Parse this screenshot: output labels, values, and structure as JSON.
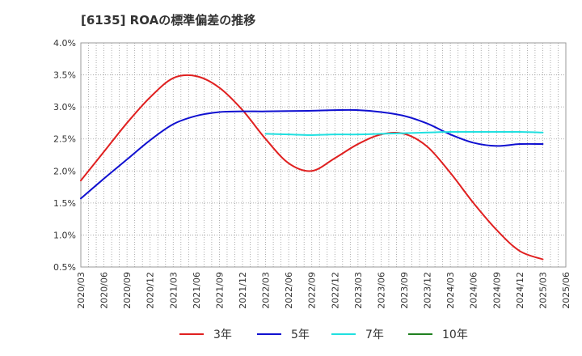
{
  "chart_data": {
    "type": "line",
    "title": "[6135]  ROAの標準偏差の推移",
    "xlabel": "",
    "ylabel": "",
    "ylim": [
      0.5,
      4.0
    ],
    "y_ticks": [
      "4.0%",
      "3.5%",
      "3.0%",
      "2.5%",
      "2.0%",
      "1.5%",
      "1.0%",
      "0.5%"
    ],
    "y_tick_values": [
      4.0,
      3.5,
      3.0,
      2.5,
      2.0,
      1.5,
      1.0,
      0.5
    ],
    "x_ticks": [
      "2020/03",
      "2020/06",
      "2020/09",
      "2020/12",
      "2021/03",
      "2021/06",
      "2021/09",
      "2021/12",
      "2022/03",
      "2022/06",
      "2022/09",
      "2022/12",
      "2023/03",
      "2023/06",
      "2023/09",
      "2023/12",
      "2024/03",
      "2024/06",
      "2024/09",
      "2024/12",
      "2025/03",
      "2025/06"
    ],
    "grid": true,
    "legend_position": "bottom",
    "series": [
      {
        "name": "3年",
        "color": "#e02020",
        "x": [
          "2020/03",
          "2020/06",
          "2020/09",
          "2020/12",
          "2021/03",
          "2021/06",
          "2021/09",
          "2021/12",
          "2022/03",
          "2022/06",
          "2022/09",
          "2022/12",
          "2023/03",
          "2023/06",
          "2023/09",
          "2023/12",
          "2024/03",
          "2024/06",
          "2024/09",
          "2024/12",
          "2025/03"
        ],
        "values": [
          1.85,
          2.3,
          2.75,
          3.15,
          3.45,
          3.48,
          3.3,
          2.95,
          2.5,
          2.12,
          2.0,
          2.2,
          2.42,
          2.57,
          2.58,
          2.38,
          1.97,
          1.5,
          1.08,
          0.75,
          0.62
        ]
      },
      {
        "name": "5年",
        "color": "#1010d0",
        "x": [
          "2020/03",
          "2020/06",
          "2020/09",
          "2020/12",
          "2021/03",
          "2021/06",
          "2021/09",
          "2021/12",
          "2022/03",
          "2022/06",
          "2022/09",
          "2022/12",
          "2023/03",
          "2023/06",
          "2023/09",
          "2023/12",
          "2024/03",
          "2024/06",
          "2024/09",
          "2024/12",
          "2025/03"
        ],
        "values": [
          1.57,
          1.88,
          2.18,
          2.48,
          2.73,
          2.86,
          2.92,
          2.93,
          2.93,
          2.935,
          2.94,
          2.95,
          2.95,
          2.92,
          2.86,
          2.74,
          2.57,
          2.44,
          2.39,
          2.42,
          2.42
        ]
      },
      {
        "name": "7年",
        "color": "#20e0e0",
        "x": [
          "2022/03",
          "2022/06",
          "2022/09",
          "2022/12",
          "2023/03",
          "2023/06",
          "2023/09",
          "2023/12",
          "2024/03",
          "2024/06",
          "2024/09",
          "2024/12",
          "2025/03"
        ],
        "values": [
          2.58,
          2.57,
          2.56,
          2.57,
          2.57,
          2.58,
          2.59,
          2.6,
          2.61,
          2.61,
          2.61,
          2.61,
          2.6
        ]
      },
      {
        "name": "10年",
        "color": "#208020",
        "x": [],
        "values": []
      }
    ]
  }
}
